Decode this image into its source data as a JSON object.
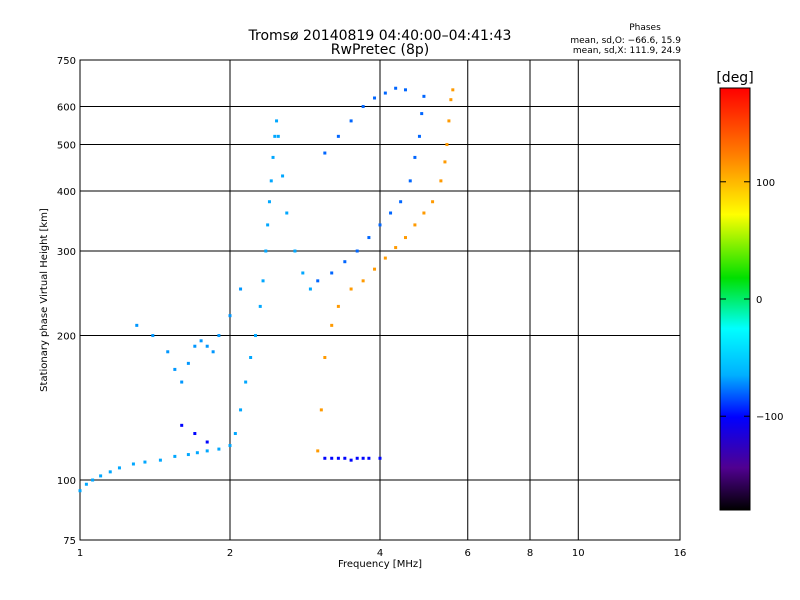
{
  "chart_data": {
    "type": "scatter",
    "title": "Tromsø 20140819 04:40:00–04:41:43",
    "subtitle": "RwPretec (8p)",
    "xlabel": "Frequency [MHz]",
    "ylabel": "Stationary phase Virtual Height [km]",
    "x_scale": "log",
    "y_scale": "log",
    "xlim": [
      1,
      16
    ],
    "ylim": [
      75,
      750
    ],
    "grid": true,
    "x_ticks": [
      {
        "value": 1,
        "label": "1"
      },
      {
        "value": 2,
        "label": "2"
      },
      {
        "value": 4,
        "label": "4"
      },
      {
        "value": 6,
        "label": "6"
      },
      {
        "value": 8,
        "label": "8"
      },
      {
        "value": 10,
        "label": "10"
      },
      {
        "value": 16,
        "label": "16"
      }
    ],
    "y_ticks": [
      {
        "value": 75,
        "label": "75"
      },
      {
        "value": 100,
        "label": "100"
      },
      {
        "value": 200,
        "label": "200"
      },
      {
        "value": 300,
        "label": "300"
      },
      {
        "value": 400,
        "label": "400"
      },
      {
        "value": 500,
        "label": "500"
      },
      {
        "value": 600,
        "label": "600"
      },
      {
        "value": 750,
        "label": "750"
      }
    ],
    "phase_stats": {
      "header": "Phases",
      "line_o": "mean, sd,O: −66.6, 15.9",
      "line_x": "mean, sd,X: 111.9, 24.9"
    },
    "colorbar": {
      "label": "[deg]",
      "range": [
        -180,
        180
      ],
      "ticks": [
        {
          "value": 100,
          "label": "100"
        },
        {
          "value": 0,
          "label": "0"
        },
        {
          "value": -100,
          "label": "−100"
        }
      ]
    },
    "series": [
      {
        "trace": "o-mode F-layer trace (left branch)",
        "phase_deg": -66.6,
        "points": [
          [
            1.0,
            95
          ],
          [
            1.03,
            98
          ],
          [
            1.06,
            100
          ],
          [
            1.1,
            102
          ],
          [
            1.15,
            104
          ],
          [
            1.2,
            106
          ],
          [
            1.28,
            108
          ],
          [
            1.35,
            109
          ],
          [
            1.45,
            110
          ],
          [
            1.55,
            112
          ],
          [
            1.65,
            113
          ],
          [
            1.72,
            114
          ],
          [
            1.8,
            115
          ],
          [
            1.9,
            116
          ],
          [
            2.0,
            118
          ],
          [
            2.05,
            125
          ],
          [
            2.1,
            140
          ],
          [
            2.15,
            160
          ],
          [
            2.2,
            180
          ],
          [
            2.25,
            200
          ],
          [
            2.3,
            230
          ],
          [
            2.33,
            260
          ],
          [
            2.36,
            300
          ],
          [
            2.38,
            340
          ],
          [
            2.4,
            380
          ],
          [
            2.42,
            420
          ],
          [
            2.44,
            470
          ],
          [
            2.46,
            520
          ],
          [
            2.48,
            560
          ],
          [
            2.5,
            520
          ],
          [
            2.55,
            430
          ],
          [
            2.6,
            360
          ],
          [
            2.7,
            300
          ],
          [
            2.8,
            270
          ],
          [
            2.9,
            250
          ]
        ]
      },
      {
        "trace": "o-mode upper branch",
        "phase_deg": -80,
        "points": [
          [
            3.0,
            260
          ],
          [
            3.2,
            270
          ],
          [
            3.4,
            285
          ],
          [
            3.6,
            300
          ],
          [
            3.8,
            320
          ],
          [
            4.0,
            340
          ],
          [
            4.2,
            360
          ],
          [
            4.4,
            380
          ],
          [
            4.6,
            420
          ],
          [
            4.7,
            470
          ],
          [
            4.8,
            520
          ],
          [
            4.85,
            580
          ],
          [
            4.9,
            630
          ],
          [
            3.1,
            480
          ],
          [
            3.3,
            520
          ],
          [
            3.5,
            560
          ],
          [
            3.7,
            600
          ],
          [
            3.9,
            625
          ],
          [
            4.1,
            640
          ],
          [
            4.3,
            655
          ],
          [
            4.5,
            650
          ]
        ]
      },
      {
        "trace": "x-mode F-layer trace",
        "phase_deg": 111.9,
        "points": [
          [
            3.0,
            115
          ],
          [
            3.05,
            140
          ],
          [
            3.1,
            180
          ],
          [
            3.2,
            210
          ],
          [
            3.3,
            230
          ],
          [
            3.5,
            250
          ],
          [
            3.7,
            260
          ],
          [
            3.9,
            275
          ],
          [
            4.1,
            290
          ],
          [
            4.3,
            305
          ],
          [
            4.5,
            320
          ],
          [
            4.7,
            340
          ],
          [
            4.9,
            360
          ],
          [
            5.1,
            380
          ],
          [
            5.3,
            420
          ],
          [
            5.4,
            460
          ],
          [
            5.45,
            500
          ],
          [
            5.5,
            560
          ],
          [
            5.55,
            620
          ],
          [
            5.6,
            650
          ]
        ]
      },
      {
        "trace": "E-layer traces",
        "phase_deg": -100,
        "points": [
          [
            3.1,
            111
          ],
          [
            3.2,
            111
          ],
          [
            3.3,
            111
          ],
          [
            3.4,
            111
          ],
          [
            3.5,
            110
          ],
          [
            3.6,
            111
          ],
          [
            3.7,
            111
          ],
          [
            3.8,
            111
          ],
          [
            4.0,
            111
          ],
          [
            1.6,
            130
          ],
          [
            1.7,
            125
          ],
          [
            1.8,
            120
          ]
        ]
      },
      {
        "trace": "lower curved branch",
        "phase_deg": -70,
        "points": [
          [
            1.3,
            210
          ],
          [
            1.4,
            200
          ],
          [
            1.5,
            185
          ],
          [
            1.55,
            170
          ],
          [
            1.6,
            160
          ],
          [
            1.65,
            175
          ],
          [
            1.7,
            190
          ],
          [
            1.75,
            195
          ],
          [
            1.8,
            190
          ],
          [
            1.85,
            185
          ],
          [
            1.9,
            200
          ],
          [
            2.0,
            220
          ],
          [
            2.1,
            250
          ]
        ]
      }
    ]
  }
}
